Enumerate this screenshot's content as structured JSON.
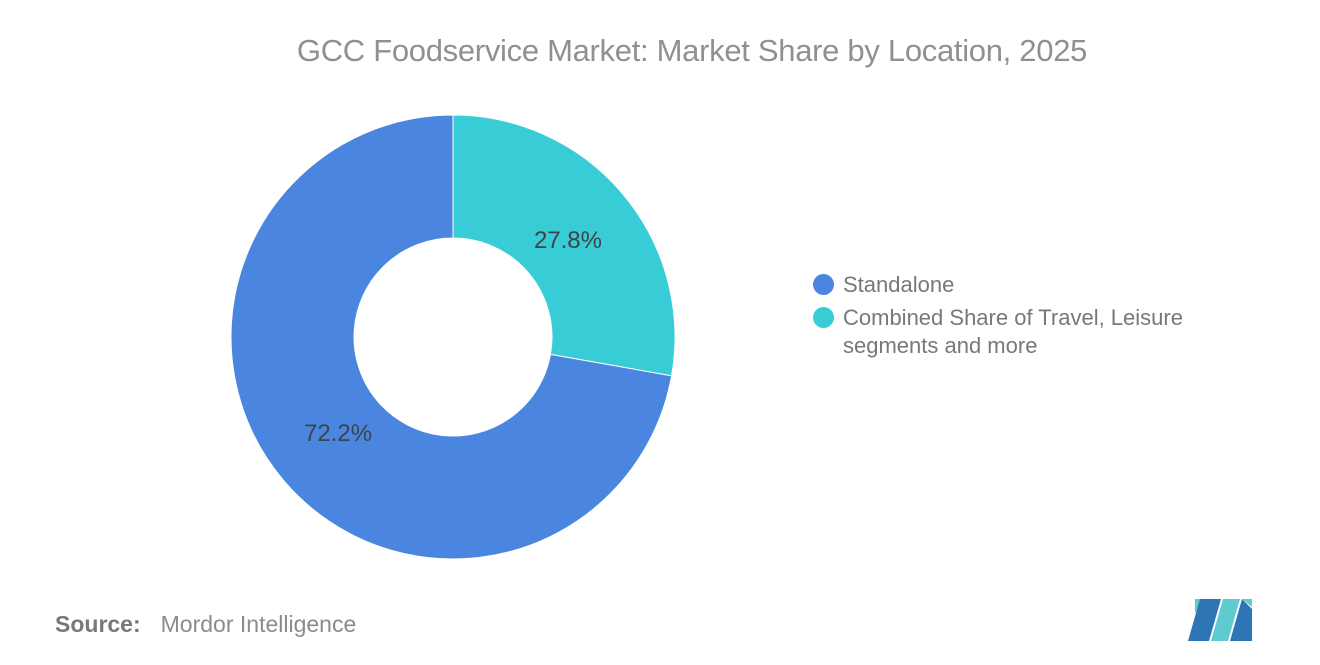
{
  "title": "GCC Foodservice Market: Market Share by Location, 2025",
  "chart_data": {
    "type": "pie",
    "subtype": "donut",
    "title": "GCC Foodservice Market: Market Share by Location, 2025",
    "categories": [
      "Standalone",
      "Combined Share of Travel, Leisure segments and more"
    ],
    "values": [
      72.2,
      27.8
    ],
    "unit": "%",
    "data_labels": [
      "72.2%",
      "27.8%"
    ],
    "colors": [
      "#4a86e0",
      "#38cdd6"
    ],
    "label_color": "#3f4347",
    "draw_order": [
      1,
      0
    ],
    "start_angle_deg": 0,
    "inner_radius_ratio": 0.445,
    "legend_position": "right",
    "grid": false
  },
  "legend": {
    "items": [
      {
        "label": "Standalone",
        "color": "#4a86e0"
      },
      {
        "label": "Combined Share of Travel, Leisure segments and more",
        "color": "#38cdd6"
      }
    ]
  },
  "source": {
    "label": "Source:",
    "value": "Mordor Intelligence"
  },
  "logo": {
    "name": "mordor-intelligence-logo",
    "blue": "#2e75b6",
    "teal": "#5ecbd1"
  }
}
